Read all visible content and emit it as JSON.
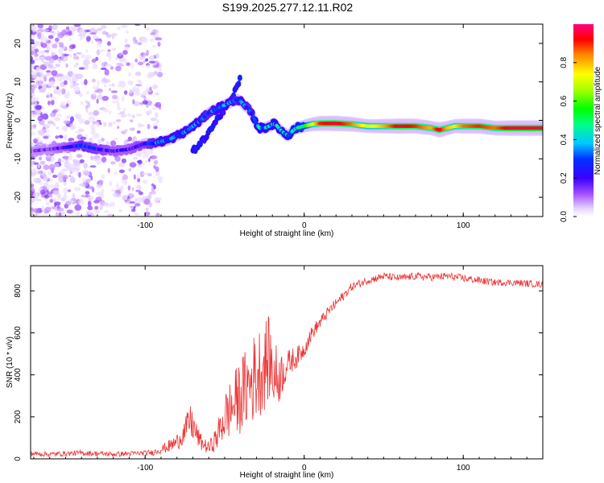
{
  "chart_data": [
    {
      "type": "heatmap",
      "title": "S199.2025.277.12.11.R02",
      "xlabel": "Height of straight line (km)",
      "ylabel": "Frequency (Hz)",
      "xlim": [
        -172,
        150
      ],
      "ylim": [
        -25,
        25
      ],
      "xticks": [
        -100,
        0,
        100
      ],
      "yticks": [
        -20,
        -10,
        0,
        10,
        20
      ],
      "colorbar": {
        "label": "Normalized spectral amplitude",
        "range": [
          0,
          1
        ],
        "ticks": [
          0.0,
          0.2,
          0.4,
          0.6,
          0.8
        ]
      },
      "ridge": {
        "x": [
          -172,
          -160,
          -150,
          -140,
          -130,
          -120,
          -110,
          -100,
          -95,
          -90,
          -85,
          -80,
          -75,
          -70,
          -65,
          -60,
          -55,
          -50,
          -45,
          -42,
          -40,
          -38,
          -35,
          -32,
          -30,
          -28,
          -25,
          -22,
          -20,
          -18,
          -15,
          -12,
          -10,
          -8,
          -5,
          0,
          5,
          10,
          20,
          30,
          40,
          50,
          60,
          70,
          80,
          85,
          90,
          95,
          100,
          110,
          120,
          130,
          140,
          150
        ],
        "y": [
          -8,
          -7.5,
          -7,
          -6.5,
          -7.5,
          -8,
          -7.5,
          -6,
          -6,
          -5.5,
          -5,
          -4,
          -3,
          -1.5,
          0,
          2,
          3,
          4,
          5,
          5.5,
          5,
          4,
          3,
          1,
          -1,
          -2,
          -2,
          -1.5,
          -1,
          -1,
          -2.5,
          -3.5,
          -4,
          -3,
          -2,
          -1.5,
          -1,
          -0.8,
          -0.8,
          -1,
          -1.5,
          -1.5,
          -1.5,
          -1.5,
          -2,
          -2.5,
          -2,
          -1.5,
          -1.5,
          -1.5,
          -2,
          -2,
          -2,
          -2
        ],
        "amplitude": [
          0.15,
          0.15,
          0.2,
          0.3,
          0.25,
          0.2,
          0.2,
          0.25,
          0.3,
          0.35,
          0.35,
          0.35,
          0.35,
          0.35,
          0.35,
          0.3,
          0.35,
          0.35,
          0.35,
          0.3,
          0.35,
          0.35,
          0.3,
          0.35,
          0.4,
          0.4,
          0.4,
          0.4,
          0.4,
          0.4,
          0.4,
          0.45,
          0.45,
          0.45,
          0.45,
          0.55,
          0.7,
          0.9,
          0.95,
          0.85,
          0.7,
          0.8,
          0.95,
          0.9,
          0.8,
          0.95,
          0.8,
          0.75,
          0.85,
          0.9,
          0.85,
          0.95,
          0.95,
          0.95
        ]
      },
      "secondary_ridge": {
        "x": [
          -70,
          -65,
          -60,
          -55,
          -50,
          -45,
          -40
        ],
        "y": [
          -8,
          -6,
          -3,
          0,
          3,
          6,
          11
        ]
      }
    },
    {
      "type": "line",
      "xlabel": "Height of straight line (km)",
      "ylabel": "SNR (10 * v/v)",
      "xlim": [
        -172,
        150
      ],
      "ylim": [
        0,
        920
      ],
      "xticks": [
        -100,
        0,
        100
      ],
      "yticks": [
        0,
        200,
        400,
        600,
        800
      ],
      "color": "#ee3333",
      "series": [
        {
          "name": "SNR",
          "x": [
            -172,
            -160,
            -150,
            -140,
            -130,
            -120,
            -110,
            -100,
            -95,
            -90,
            -85,
            -80,
            -75,
            -72,
            -70,
            -68,
            -65,
            -60,
            -55,
            -50,
            -45,
            -40,
            -35,
            -30,
            -25,
            -22,
            -20,
            -17,
            -15,
            -12,
            -10,
            -8,
            -5,
            -3,
            0,
            2,
            5,
            10,
            15,
            20,
            25,
            30,
            40,
            50,
            60,
            70,
            80,
            90,
            100,
            110,
            120,
            130,
            140,
            150
          ],
          "y": [
            25,
            22,
            25,
            28,
            25,
            22,
            25,
            28,
            30,
            45,
            60,
            80,
            130,
            180,
            160,
            120,
            80,
            50,
            100,
            200,
            250,
            300,
            350,
            400,
            450,
            480,
            420,
            380,
            400,
            430,
            450,
            470,
            480,
            500,
            520,
            560,
            600,
            650,
            700,
            740,
            780,
            820,
            850,
            870,
            860,
            870,
            865,
            870,
            860,
            850,
            840,
            840,
            835,
            830
          ],
          "amp": [
            12,
            12,
            12,
            14,
            12,
            12,
            12,
            12,
            14,
            20,
            30,
            40,
            60,
            80,
            80,
            60,
            40,
            30,
            60,
            120,
            150,
            180,
            200,
            220,
            220,
            200,
            180,
            160,
            120,
            80,
            70,
            60,
            50,
            45,
            40,
            40,
            35,
            30,
            25,
            25,
            22,
            20,
            18,
            18,
            18,
            18,
            18,
            18,
            18,
            18,
            16,
            16,
            16,
            16
          ]
        }
      ]
    }
  ]
}
